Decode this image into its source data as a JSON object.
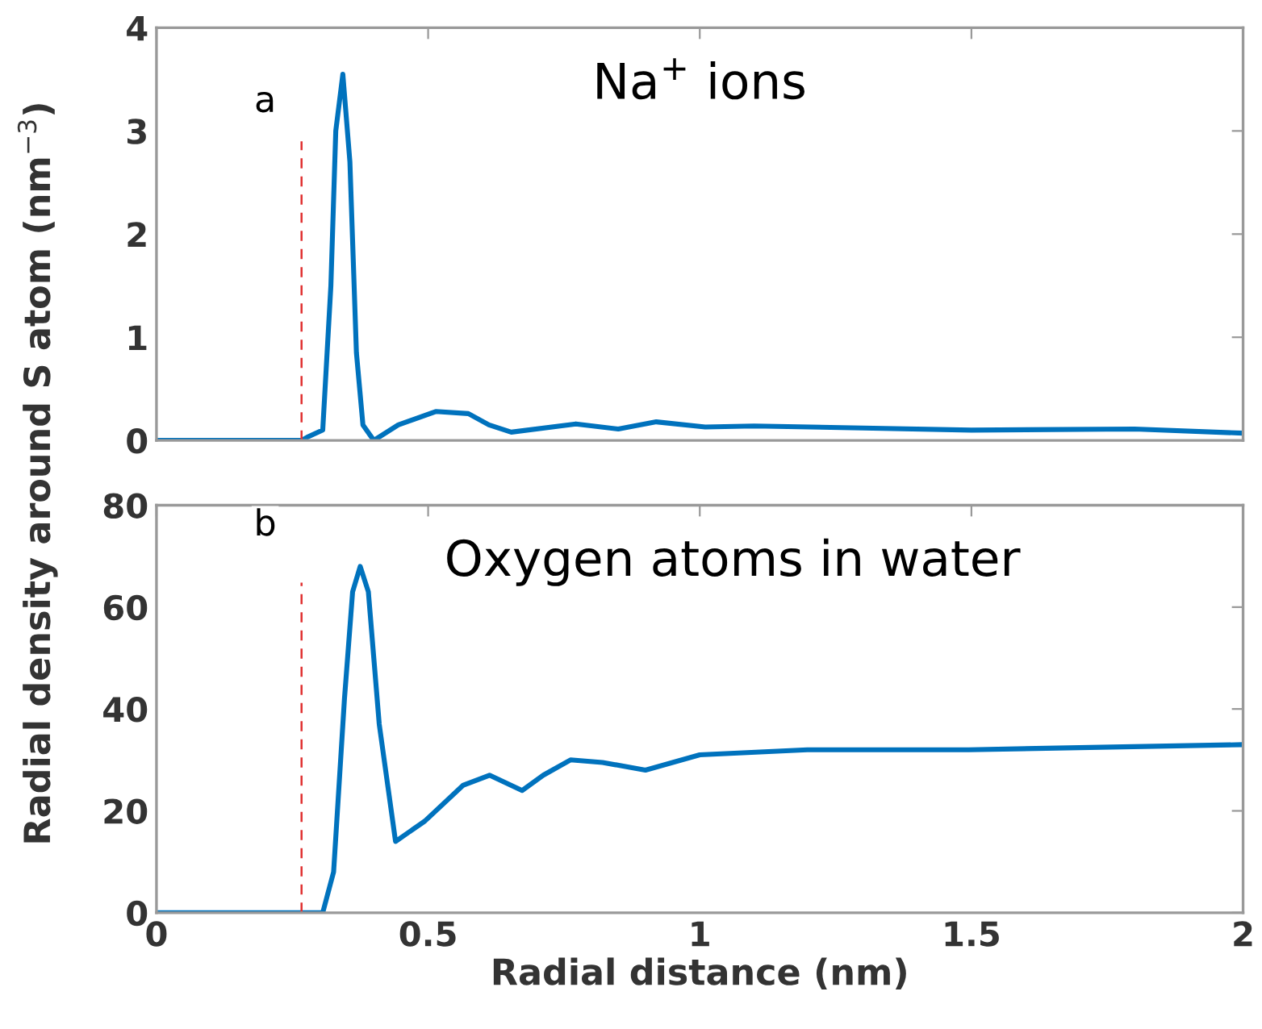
{
  "chart_data": [
    {
      "type": "line",
      "ylabel": "Radial density around S atom (nm$^{−3}$)",
      "annotations": [
        "a",
        "Na$^{+}$ ions"
      ],
      "x": [
        0,
        0.267,
        0.277,
        0.306,
        0.321,
        0.33,
        0.343,
        0.356,
        0.368,
        0.38,
        0.4,
        0.445,
        0.514,
        0.574,
        0.612,
        0.653,
        0.772,
        0.85,
        0.92,
        1.01,
        1.1,
        1.3,
        1.5,
        1.8,
        2.0
      ],
      "series": [
        {
          "color": "#0072bd",
          "values": [
            0,
            0,
            0.03,
            0.1,
            1.5,
            3.0,
            3.55,
            2.7,
            0.85,
            0.15,
            0,
            0.15,
            0.28,
            0.26,
            0.15,
            0.08,
            0.16,
            0.11,
            0.18,
            0.13,
            0.14,
            0.12,
            0.1,
            0.11,
            0.07
          ]
        }
      ],
      "xlim": [
        0,
        2
      ],
      "xticks": [
        0,
        0.5,
        1,
        1.5,
        2
      ],
      "ylim": [
        0,
        4
      ],
      "yticks": [
        0,
        1,
        2,
        3,
        4
      ],
      "tick_labels": "y",
      "grid": false,
      "marker": "none",
      "line_style": "solid",
      "ref_lines": [
        {
          "axis": "x",
          "value": 0.267,
          "color": "#e03030",
          "line_style": "dashed"
        }
      ]
    },
    {
      "type": "line",
      "xlabel": "Radial distance (nm)",
      "annotations": [
        "b",
        "Oxygen atoms in water"
      ],
      "x": [
        0,
        0.267,
        0.306,
        0.326,
        0.346,
        0.361,
        0.375,
        0.39,
        0.41,
        0.44,
        0.494,
        0.564,
        0.613,
        0.673,
        0.712,
        0.762,
        0.821,
        0.9,
        1.0,
        1.198,
        1.495,
        2.0
      ],
      "series": [
        {
          "color": "#0072bd",
          "values": [
            0,
            0,
            0,
            8,
            42,
            63,
            68,
            63,
            37,
            14,
            18,
            25,
            27,
            24,
            27,
            30,
            29.5,
            28,
            31,
            32,
            32,
            33
          ]
        }
      ],
      "xlim": [
        0,
        2
      ],
      "xticks": [
        0,
        0.5,
        1,
        1.5,
        2
      ],
      "ylim": [
        0,
        80
      ],
      "yticks": [
        0,
        20,
        40,
        60,
        80
      ],
      "grid": false,
      "marker": "none",
      "line_style": "solid",
      "ref_lines": [
        {
          "axis": "x",
          "value": 0.267,
          "color": "#e03030",
          "line_style": "dashed"
        }
      ]
    }
  ]
}
